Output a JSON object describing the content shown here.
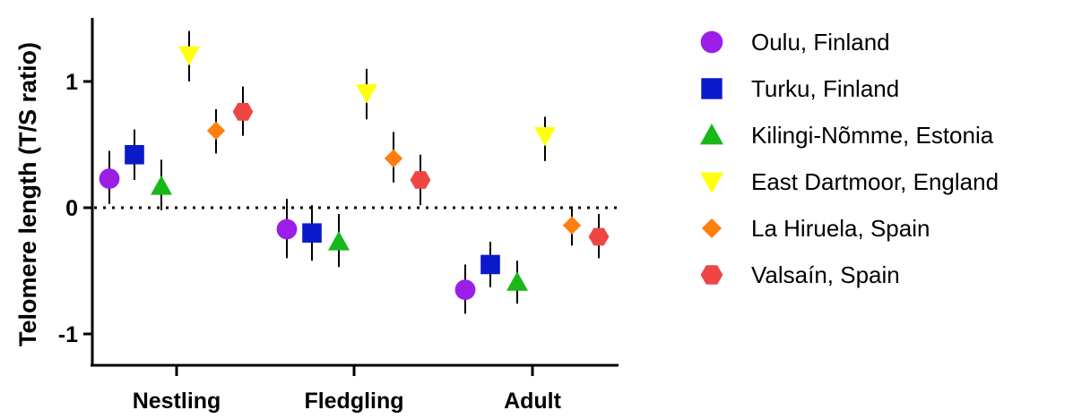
{
  "chart_data": {
    "type": "scatter",
    "ylabel": "Telomere length (T/S ratio)",
    "ylim": [
      -1.25,
      1.5
    ],
    "yticks": [
      -1,
      0,
      1
    ],
    "ytick_labels": [
      "-1",
      "0",
      "1"
    ],
    "reference_line": {
      "y": 0,
      "style": "dotted"
    },
    "categories": [
      "Nestling",
      "Fledgling",
      "Adult"
    ],
    "legend_position": "right",
    "series": [
      {
        "name": "Oulu, Finland",
        "marker": "circle",
        "color": "#9B1FE6",
        "values": [
          0.23,
          -0.17,
          -0.65
        ],
        "lower": [
          0.03,
          -0.4,
          -0.84
        ],
        "upper": [
          0.45,
          0.07,
          -0.45
        ]
      },
      {
        "name": "Turku, Finland",
        "marker": "square",
        "color": "#0A1ACB",
        "values": [
          0.42,
          -0.2,
          -0.45
        ],
        "lower": [
          0.22,
          -0.42,
          -0.63
        ],
        "upper": [
          0.62,
          0.02,
          -0.27
        ]
      },
      {
        "name": "Kilingi-Nõmme, Estonia",
        "marker": "triangle-up",
        "color": "#18B818",
        "values": [
          0.17,
          -0.27,
          -0.59
        ],
        "lower": [
          -0.02,
          -0.47,
          -0.76
        ],
        "upper": [
          0.38,
          -0.05,
          -0.42
        ]
      },
      {
        "name": "East Dartmoor, England",
        "marker": "triangle-down",
        "color": "#FFFF10",
        "values": [
          1.21,
          0.91,
          0.57
        ],
        "lower": [
          1.0,
          0.7,
          0.37
        ],
        "upper": [
          1.4,
          1.1,
          0.72
        ]
      },
      {
        "name": "La Hiruela, Spain",
        "marker": "diamond",
        "color": "#FF7F0E",
        "values": [
          0.61,
          0.39,
          -0.14
        ],
        "lower": [
          0.43,
          0.2,
          -0.3
        ],
        "upper": [
          0.78,
          0.6,
          0.01
        ]
      },
      {
        "name": "Valsaín, Spain",
        "marker": "hexagon",
        "color": "#F04545",
        "values": [
          0.76,
          0.22,
          -0.23
        ],
        "lower": [
          0.57,
          0.02,
          -0.4
        ],
        "upper": [
          0.96,
          0.42,
          -0.05
        ]
      }
    ]
  }
}
